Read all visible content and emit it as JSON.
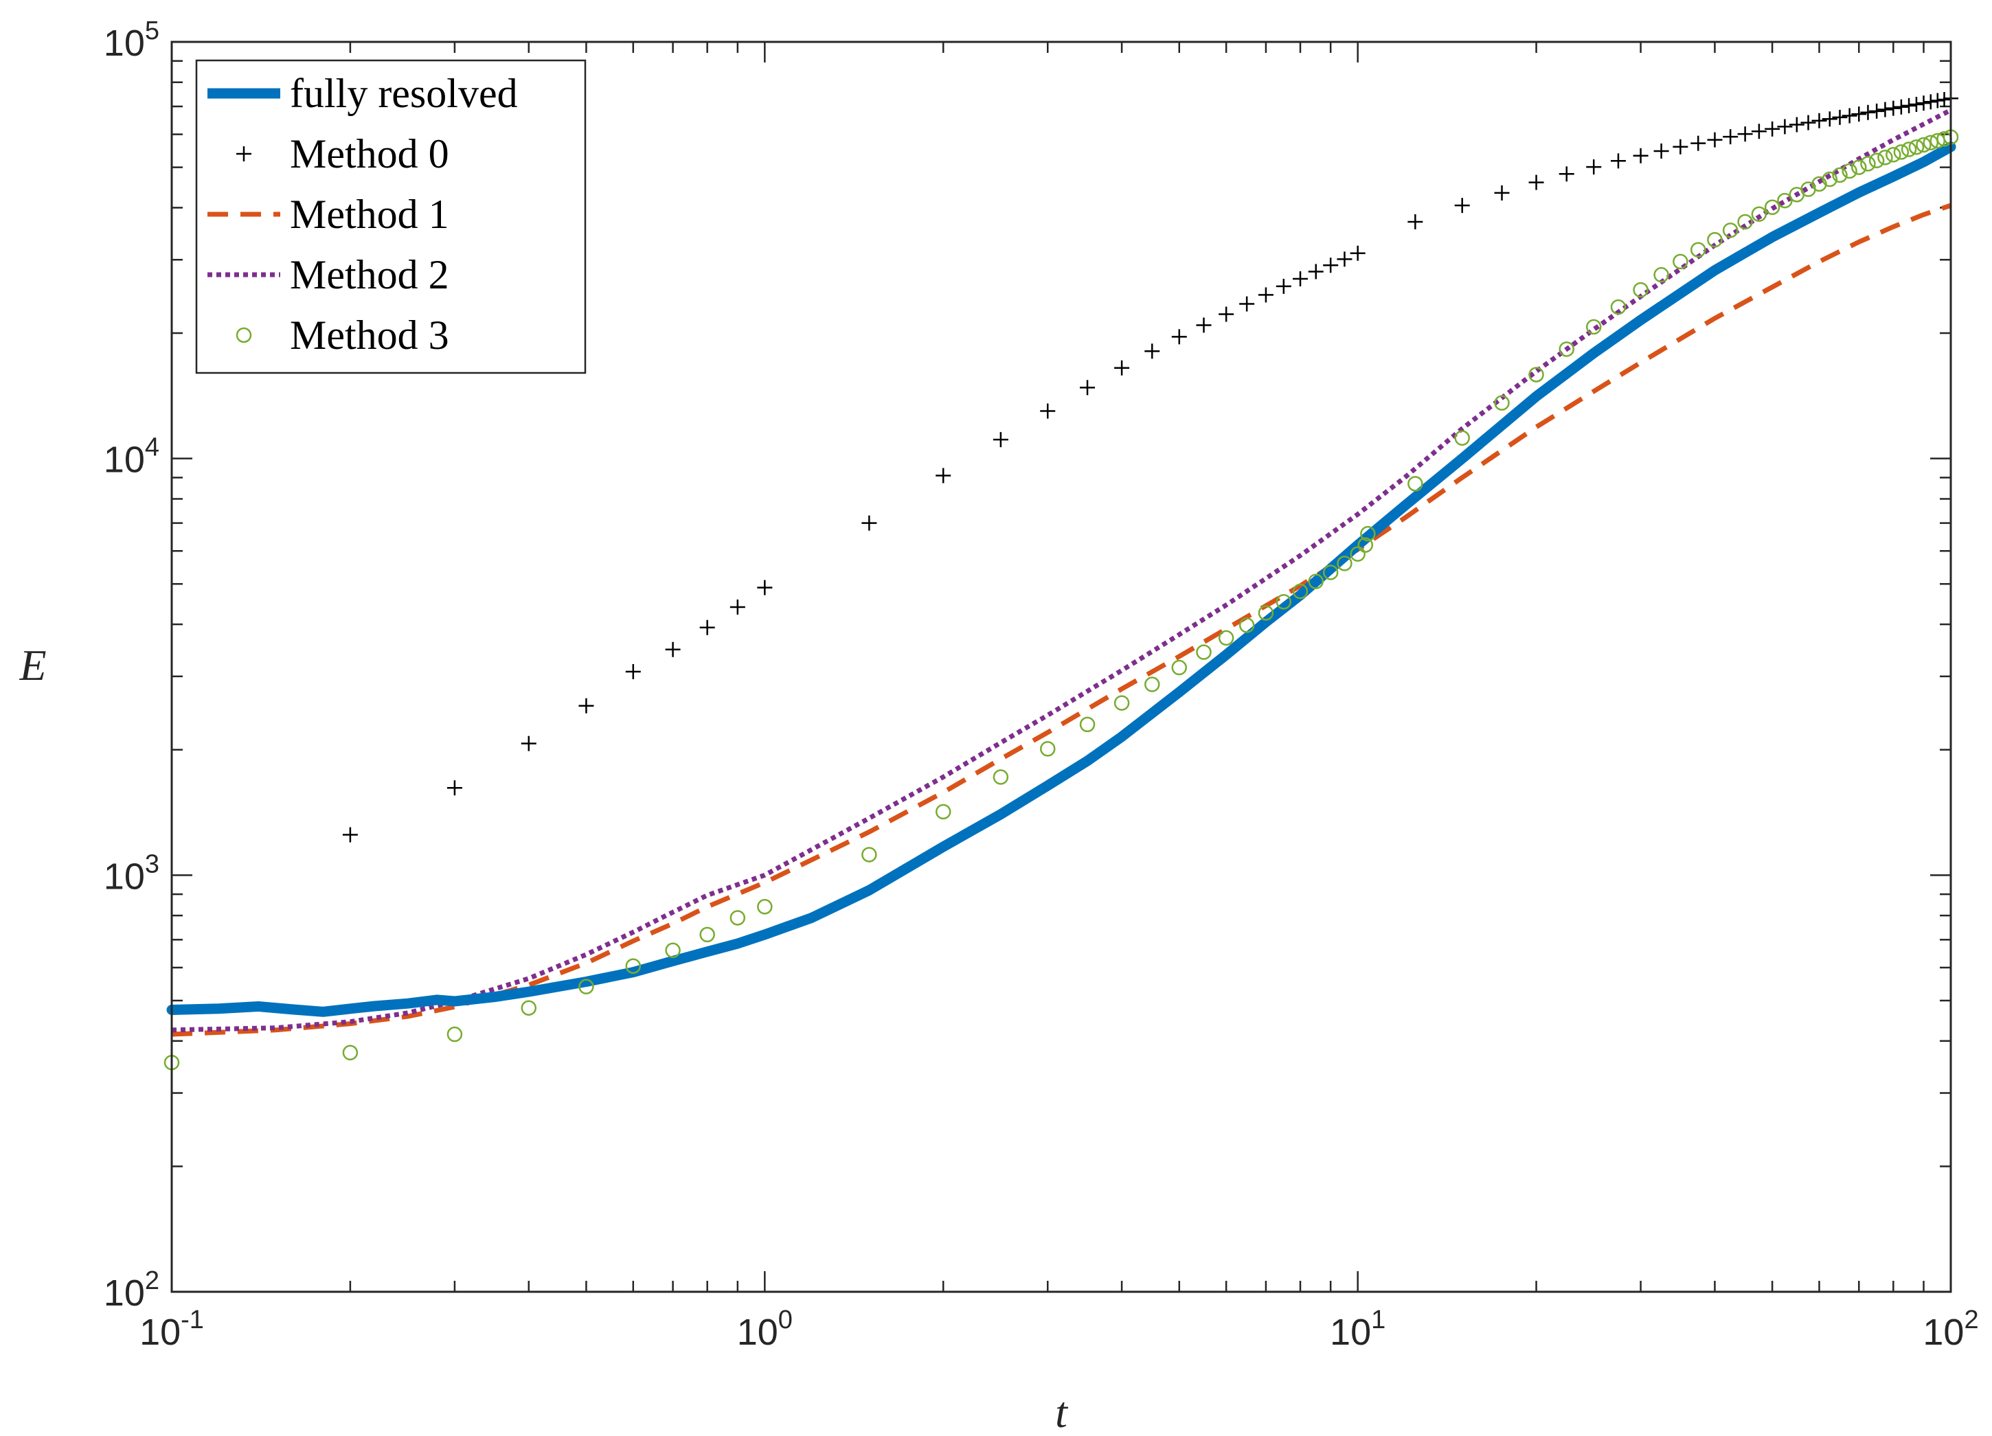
{
  "chart_data": {
    "type": "line",
    "xscale": "log",
    "yscale": "log",
    "xlabel": "t",
    "ylabel": "E",
    "xlim": [
      0.1,
      100
    ],
    "ylim": [
      100,
      100000
    ],
    "legend_position": "top-left",
    "x_ticks": [
      {
        "value": 0.1,
        "base": "10",
        "exp": "-1"
      },
      {
        "value": 1,
        "base": "10",
        "exp": "0"
      },
      {
        "value": 10,
        "base": "10",
        "exp": "1"
      },
      {
        "value": 100,
        "base": "10",
        "exp": "2"
      }
    ],
    "y_ticks": [
      {
        "value": 100,
        "base": "10",
        "exp": "2"
      },
      {
        "value": 1000,
        "base": "10",
        "exp": "3"
      },
      {
        "value": 10000,
        "base": "10",
        "exp": "4"
      },
      {
        "value": 100000,
        "base": "10",
        "exp": "5"
      }
    ],
    "series": [
      {
        "name": "fully resolved",
        "style": "thick-line",
        "color": "#0072BD",
        "points": [
          [
            0.1,
            475
          ],
          [
            0.12,
            478
          ],
          [
            0.14,
            484
          ],
          [
            0.16,
            476
          ],
          [
            0.18,
            470
          ],
          [
            0.2,
            478
          ],
          [
            0.22,
            485
          ],
          [
            0.25,
            492
          ],
          [
            0.28,
            502
          ],
          [
            0.3,
            498
          ],
          [
            0.35,
            510
          ],
          [
            0.4,
            525
          ],
          [
            0.5,
            555
          ],
          [
            0.6,
            585
          ],
          [
            0.7,
            622
          ],
          [
            0.8,
            655
          ],
          [
            0.9,
            685
          ],
          [
            1,
            720
          ],
          [
            1.2,
            790
          ],
          [
            1.5,
            920
          ],
          [
            2,
            1170
          ],
          [
            2.5,
            1400
          ],
          [
            3,
            1640
          ],
          [
            3.5,
            1880
          ],
          [
            4,
            2150
          ],
          [
            5,
            2750
          ],
          [
            6,
            3380
          ],
          [
            7,
            4050
          ],
          [
            8,
            4700
          ],
          [
            10,
            6200
          ],
          [
            12,
            7700
          ],
          [
            15,
            10000
          ],
          [
            20,
            14100
          ],
          [
            25,
            17900
          ],
          [
            30,
            21500
          ],
          [
            40,
            28300
          ],
          [
            50,
            34000
          ],
          [
            60,
            38900
          ],
          [
            70,
            43500
          ],
          [
            80,
            47500
          ],
          [
            90,
            51500
          ],
          [
            100,
            56000
          ]
        ]
      },
      {
        "name": "Method 0",
        "style": "plus",
        "color": "#000000",
        "points": [
          [
            0.2,
            1250
          ],
          [
            0.3,
            1620
          ],
          [
            0.4,
            2070
          ],
          [
            0.5,
            2550
          ],
          [
            0.6,
            3080
          ],
          [
            0.7,
            3480
          ],
          [
            0.8,
            3930
          ],
          [
            0.9,
            4400
          ],
          [
            1,
            4900
          ],
          [
            1.5,
            7000
          ],
          [
            2,
            9100
          ],
          [
            2.5,
            11100
          ],
          [
            3,
            13000
          ],
          [
            3.5,
            14800
          ],
          [
            4,
            16500
          ],
          [
            4.5,
            18100
          ],
          [
            5,
            19600
          ],
          [
            5.5,
            20900
          ],
          [
            6,
            22200
          ],
          [
            6.5,
            23500
          ],
          [
            7,
            24700
          ],
          [
            7.5,
            25900
          ],
          [
            8,
            27000
          ],
          [
            8.5,
            28100
          ],
          [
            9,
            29100
          ],
          [
            9.5,
            30100
          ],
          [
            10,
            31100
          ],
          [
            12.5,
            37000
          ],
          [
            15,
            40500
          ],
          [
            17.5,
            43400
          ],
          [
            20,
            46000
          ],
          [
            22.5,
            48200
          ],
          [
            25,
            50100
          ],
          [
            27.5,
            51800
          ],
          [
            30,
            53300
          ],
          [
            32.5,
            54700
          ],
          [
            35,
            56000
          ],
          [
            37.5,
            57100
          ],
          [
            40,
            58200
          ],
          [
            42.5,
            59200
          ],
          [
            45,
            60100
          ],
          [
            47.5,
            61000
          ],
          [
            50,
            61800
          ],
          [
            52.5,
            62600
          ],
          [
            55,
            63300
          ],
          [
            57.5,
            64000
          ],
          [
            60,
            64700
          ],
          [
            62.5,
            65300
          ],
          [
            65,
            65900
          ],
          [
            67.5,
            66500
          ],
          [
            70,
            67100
          ],
          [
            72.5,
            67700
          ],
          [
            75,
            68200
          ],
          [
            77.5,
            68800
          ],
          [
            80,
            69300
          ],
          [
            82.5,
            69800
          ],
          [
            85,
            70300
          ],
          [
            87.5,
            70800
          ],
          [
            90,
            71300
          ],
          [
            92.5,
            71800
          ],
          [
            95,
            72300
          ],
          [
            97.5,
            72700
          ],
          [
            100,
            73200
          ]
        ]
      },
      {
        "name": "Method 1",
        "style": "dashed",
        "color": "#D95319",
        "points": [
          [
            0.1,
            415
          ],
          [
            0.15,
            425
          ],
          [
            0.2,
            440
          ],
          [
            0.25,
            458
          ],
          [
            0.3,
            483
          ],
          [
            0.4,
            545
          ],
          [
            0.5,
            615
          ],
          [
            0.6,
            695
          ],
          [
            0.7,
            765
          ],
          [
            0.8,
            840
          ],
          [
            1,
            960
          ],
          [
            1.5,
            1270
          ],
          [
            2,
            1580
          ],
          [
            2.5,
            1900
          ],
          [
            3,
            2200
          ],
          [
            4,
            2800
          ],
          [
            5,
            3350
          ],
          [
            6,
            3900
          ],
          [
            8,
            4950
          ],
          [
            10,
            6050
          ],
          [
            12,
            7200
          ],
          [
            15,
            9000
          ],
          [
            20,
            11900
          ],
          [
            25,
            14500
          ],
          [
            30,
            17000
          ],
          [
            40,
            21700
          ],
          [
            50,
            25800
          ],
          [
            60,
            29700
          ],
          [
            70,
            33100
          ],
          [
            80,
            36000
          ],
          [
            90,
            38500
          ],
          [
            100,
            40500
          ]
        ]
      },
      {
        "name": "Method 2",
        "style": "dotted",
        "color": "#7E2F8E",
        "points": [
          [
            0.1,
            425
          ],
          [
            0.15,
            430
          ],
          [
            0.2,
            445
          ],
          [
            0.25,
            467
          ],
          [
            0.3,
            498
          ],
          [
            0.4,
            565
          ],
          [
            0.5,
            645
          ],
          [
            0.6,
            730
          ],
          [
            0.7,
            815
          ],
          [
            0.8,
            895
          ],
          [
            1,
            1000
          ],
          [
            1.5,
            1370
          ],
          [
            2,
            1720
          ],
          [
            2.5,
            2080
          ],
          [
            3,
            2420
          ],
          [
            4,
            3100
          ],
          [
            5,
            3780
          ],
          [
            6,
            4450
          ],
          [
            8,
            5850
          ],
          [
            10,
            7350
          ],
          [
            12,
            9000
          ],
          [
            15,
            11800
          ],
          [
            20,
            16200
          ],
          [
            25,
            20400
          ],
          [
            30,
            24500
          ],
          [
            40,
            32500
          ],
          [
            50,
            39800
          ],
          [
            60,
            46200
          ],
          [
            70,
            52400
          ],
          [
            80,
            58200
          ],
          [
            90,
            63500
          ],
          [
            100,
            68600
          ]
        ]
      },
      {
        "name": "Method 3",
        "style": "circle",
        "color": "#77AC30",
        "points": [
          [
            0.1,
            355
          ],
          [
            0.2,
            375
          ],
          [
            0.3,
            415
          ],
          [
            0.4,
            480
          ],
          [
            0.5,
            540
          ],
          [
            0.6,
            605
          ],
          [
            0.7,
            660
          ],
          [
            0.8,
            720
          ],
          [
            0.9,
            790
          ],
          [
            1,
            840
          ],
          [
            1.5,
            1120
          ],
          [
            2,
            1420
          ],
          [
            2.5,
            1720
          ],
          [
            3,
            2010
          ],
          [
            3.5,
            2300
          ],
          [
            4,
            2590
          ],
          [
            4.5,
            2870
          ],
          [
            5,
            3150
          ],
          [
            5.5,
            3430
          ],
          [
            6,
            3710
          ],
          [
            6.5,
            3980
          ],
          [
            7,
            4260
          ],
          [
            7.5,
            4530
          ],
          [
            8,
            4800
          ],
          [
            8.5,
            5070
          ],
          [
            9,
            5330
          ],
          [
            9.5,
            5600
          ],
          [
            10,
            5900
          ],
          [
            10.3,
            6200
          ],
          [
            10.4,
            6600
          ],
          [
            12.5,
            8700
          ],
          [
            15,
            11200
          ],
          [
            17.5,
            13600
          ],
          [
            20,
            15900
          ],
          [
            22.5,
            18300
          ],
          [
            25,
            20700
          ],
          [
            27.5,
            23100
          ],
          [
            30,
            25400
          ],
          [
            32.5,
            27600
          ],
          [
            35,
            29700
          ],
          [
            37.5,
            31700
          ],
          [
            40,
            33500
          ],
          [
            42.5,
            35300
          ],
          [
            45,
            37000
          ],
          [
            47.5,
            38600
          ],
          [
            50,
            40100
          ],
          [
            52.5,
            41600
          ],
          [
            55,
            43000
          ],
          [
            57.5,
            44300
          ],
          [
            60,
            45600
          ],
          [
            62.5,
            46800
          ],
          [
            65,
            47900
          ],
          [
            67.5,
            49000
          ],
          [
            70,
            50000
          ],
          [
            72.5,
            51000
          ],
          [
            75,
            51900
          ],
          [
            77.5,
            52800
          ],
          [
            80,
            53600
          ],
          [
            82.5,
            54400
          ],
          [
            85,
            55200
          ],
          [
            87.5,
            55900
          ],
          [
            90,
            56600
          ],
          [
            92.5,
            57300
          ],
          [
            95,
            57900
          ],
          [
            97.5,
            58500
          ],
          [
            100,
            59100
          ]
        ]
      }
    ]
  }
}
